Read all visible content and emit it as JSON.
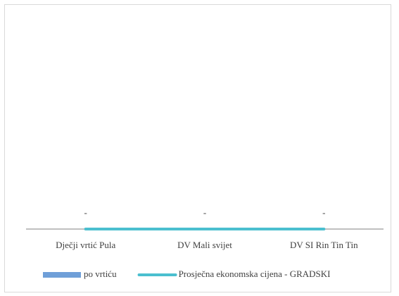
{
  "chart_data": {
    "type": "bar",
    "categories": [
      "Dječji vrtić Pula",
      "DV Mali svijet",
      "DV SI Rin Tin Tin"
    ],
    "series": [
      {
        "name": "po vrtiću",
        "type": "bar",
        "color": "#6f9fd8",
        "values": [
          0,
          0,
          0
        ],
        "value_labels": [
          "-",
          "-",
          "-"
        ]
      },
      {
        "name": "Prosječna ekonomska cijena - GRADSKI",
        "type": "line",
        "color": "#4bbfcf",
        "values": [
          0,
          0,
          0
        ]
      }
    ],
    "ylim": [
      0,
      1
    ],
    "legend": "bottom"
  }
}
